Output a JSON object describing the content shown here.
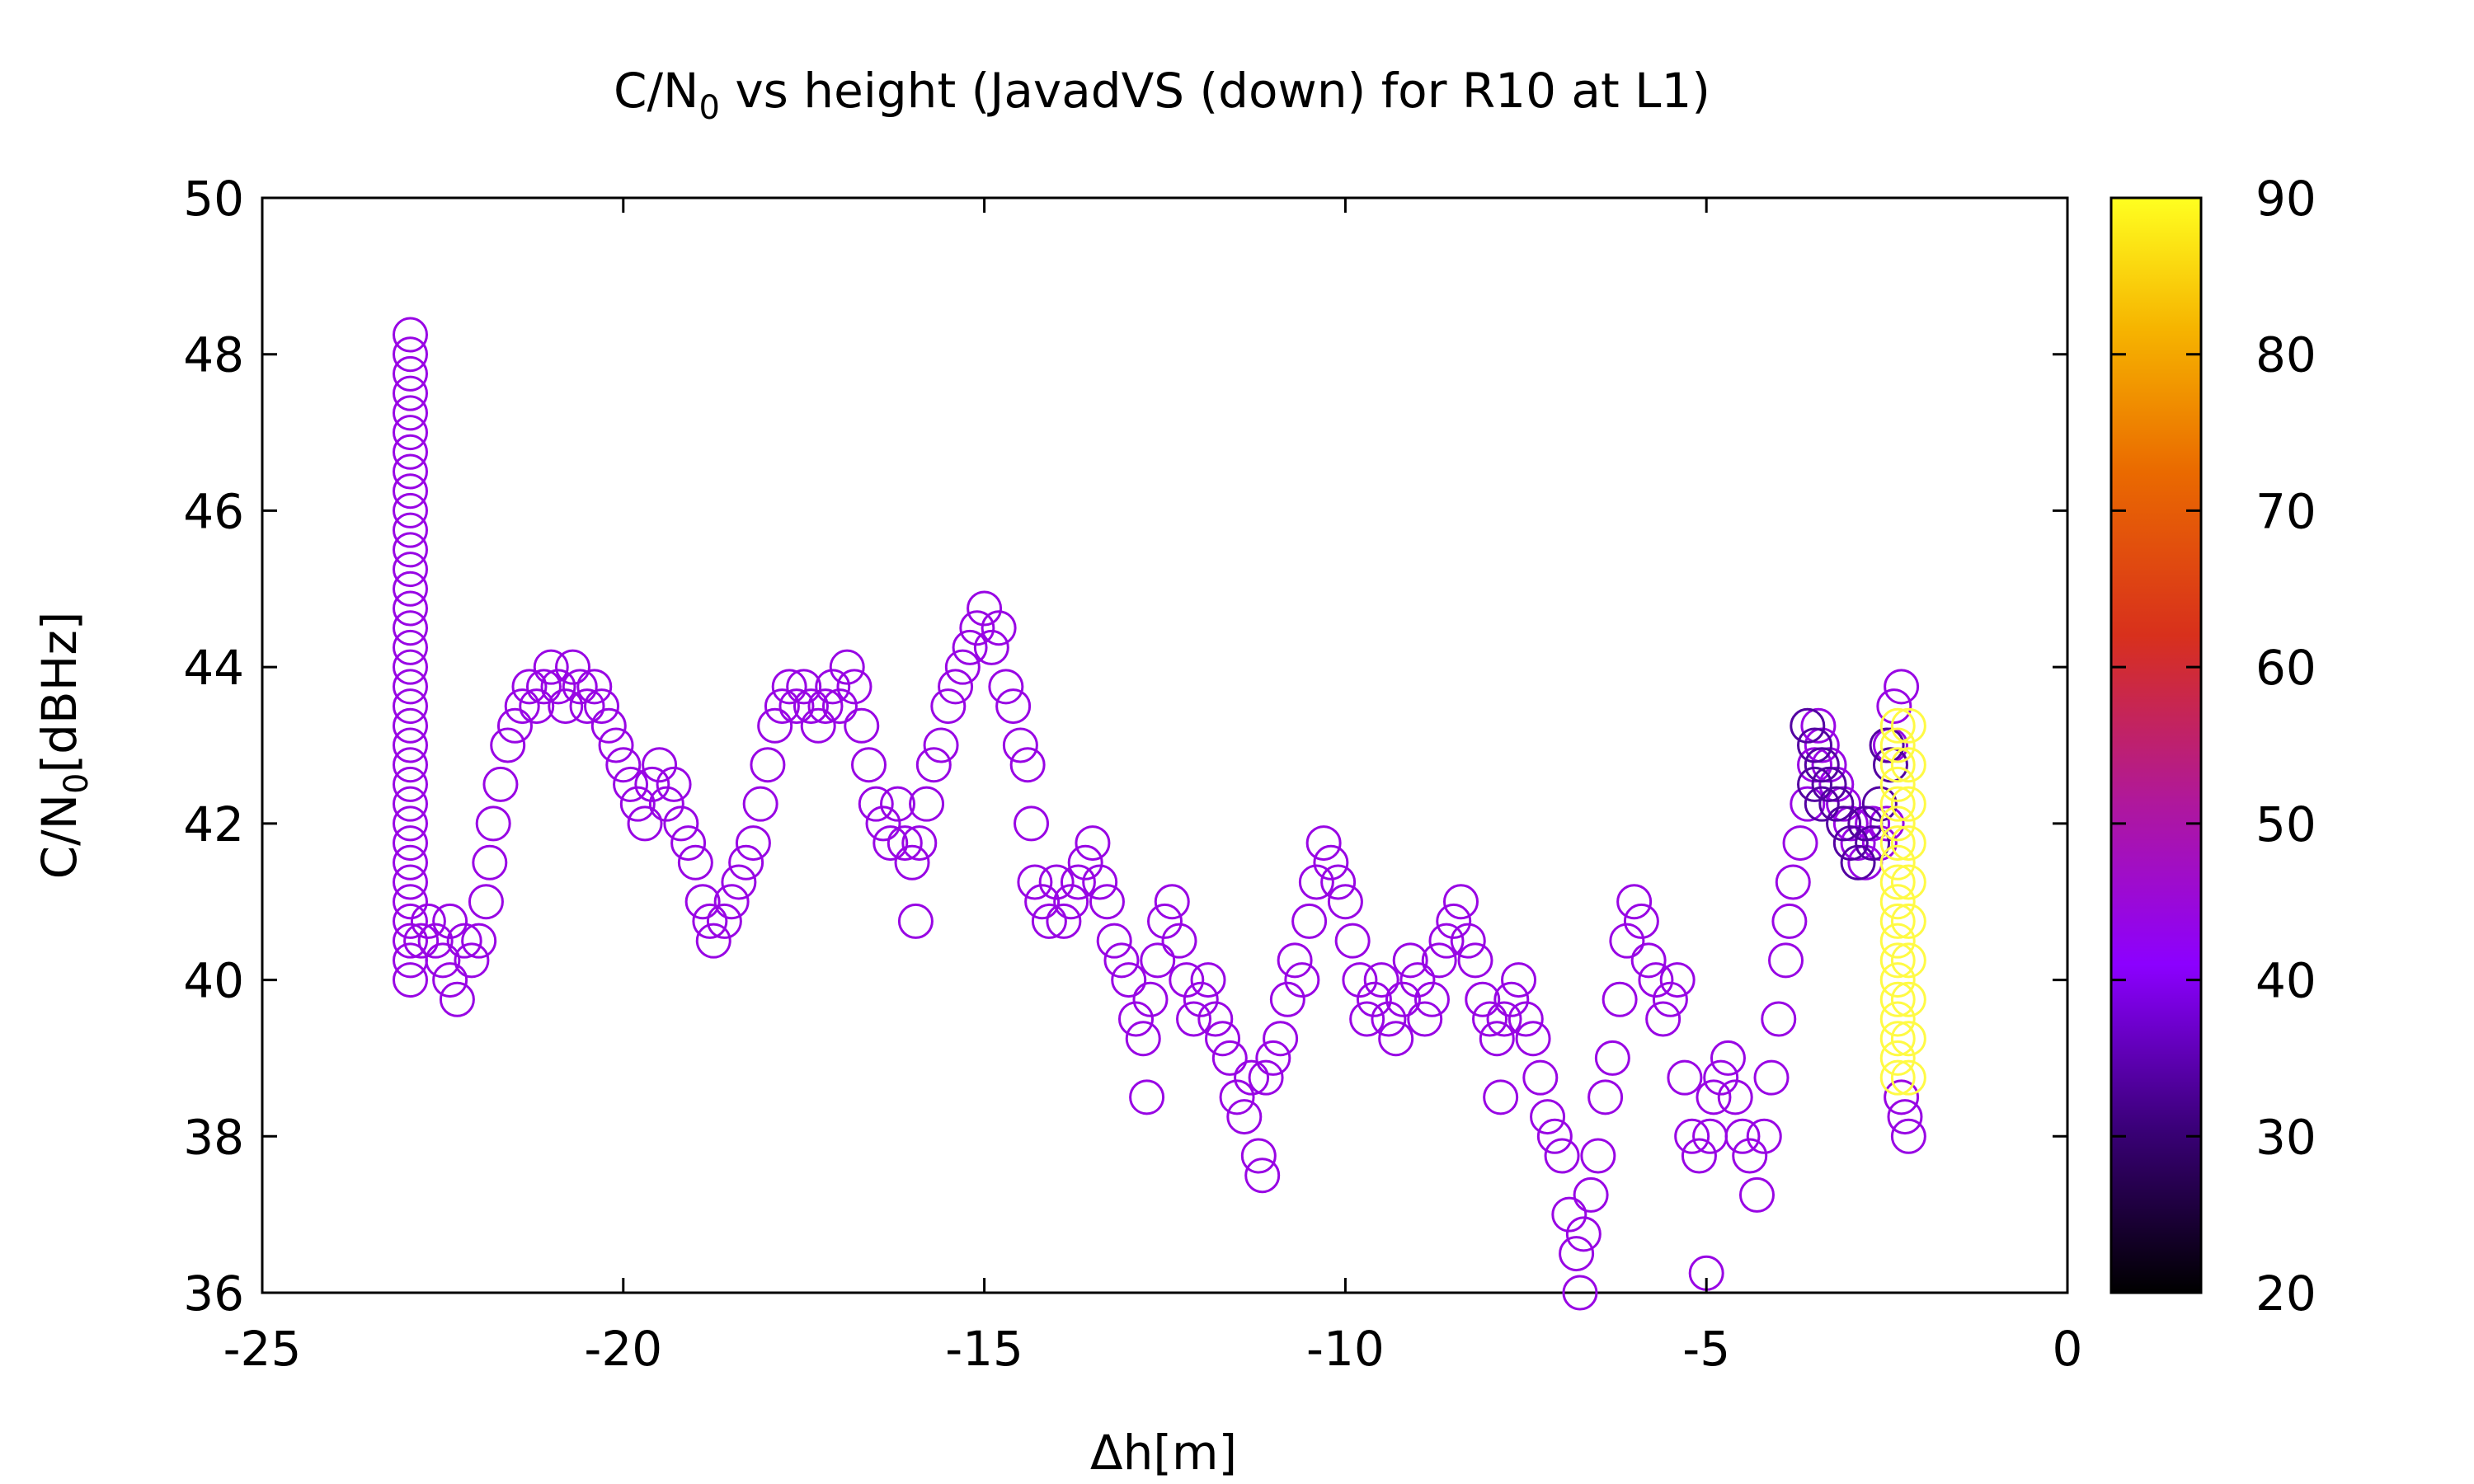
{
  "chart_data": {
    "type": "scatter",
    "title_main": "C/N",
    "title_sub": "0",
    "title_rest": " vs height (JavadVS (down) for R10 at L1)",
    "xlabel": "Δh[m]",
    "ylabel_main": "C/N",
    "ylabel_sub": "0",
    "ylabel_rest": "[dBHz]",
    "xlim": [
      -25,
      0
    ],
    "ylim": [
      36,
      50
    ],
    "xticks": [
      "-25",
      "-20",
      "-15",
      "-10",
      "-5",
      "0"
    ],
    "yticks": [
      "36",
      "38",
      "40",
      "42",
      "44",
      "46",
      "48",
      "50"
    ],
    "colorbar": {
      "range": [
        20,
        90
      ],
      "ticks": [
        "20",
        "30",
        "40",
        "50",
        "60",
        "70",
        "80",
        "90"
      ],
      "palette": [
        "#000000",
        "#3a0078",
        "#8c00ff",
        "#c8197a",
        "#e0401a",
        "#f08c00",
        "#ffe800",
        "#ffff55"
      ]
    },
    "marker": "open-circle",
    "series": [
      {
        "color_value": 42,
        "points": [
          [
            -22.95,
            40.0
          ],
          [
            -22.95,
            40.25
          ],
          [
            -22.95,
            40.5
          ],
          [
            -22.95,
            40.75
          ],
          [
            -22.95,
            41.0
          ],
          [
            -22.95,
            41.25
          ],
          [
            -22.95,
            41.5
          ],
          [
            -22.95,
            41.75
          ],
          [
            -22.95,
            42.0
          ],
          [
            -22.95,
            42.25
          ],
          [
            -22.95,
            42.5
          ],
          [
            -22.95,
            42.75
          ],
          [
            -22.95,
            43.0
          ],
          [
            -22.95,
            43.25
          ],
          [
            -22.95,
            43.5
          ],
          [
            -22.95,
            43.75
          ],
          [
            -22.95,
            44.0
          ],
          [
            -22.95,
            44.25
          ],
          [
            -22.95,
            44.5
          ],
          [
            -22.95,
            44.75
          ],
          [
            -22.95,
            45.0
          ],
          [
            -22.95,
            45.25
          ],
          [
            -22.95,
            45.5
          ],
          [
            -22.95,
            45.75
          ],
          [
            -22.95,
            46.0
          ],
          [
            -22.95,
            46.25
          ],
          [
            -22.95,
            46.5
          ],
          [
            -22.95,
            46.75
          ],
          [
            -22.95,
            47.0
          ],
          [
            -22.95,
            47.25
          ],
          [
            -22.95,
            47.5
          ],
          [
            -22.95,
            47.75
          ],
          [
            -22.95,
            48.0
          ],
          [
            -22.95,
            48.25
          ],
          [
            -22.8,
            40.5
          ],
          [
            -22.7,
            40.75
          ],
          [
            -22.6,
            40.5
          ],
          [
            -22.5,
            40.25
          ],
          [
            -22.4,
            40.0
          ],
          [
            -22.3,
            39.75
          ],
          [
            -22.4,
            40.75
          ],
          [
            -22.2,
            40.5
          ],
          [
            -22.1,
            40.25
          ],
          [
            -22.0,
            40.5
          ],
          [
            -21.9,
            41.0
          ],
          [
            -21.85,
            41.5
          ],
          [
            -21.8,
            42.0
          ],
          [
            -21.7,
            42.5
          ],
          [
            -21.6,
            43.0
          ],
          [
            -21.5,
            43.25
          ],
          [
            -21.4,
            43.5
          ],
          [
            -21.3,
            43.75
          ],
          [
            -21.2,
            43.5
          ],
          [
            -21.1,
            43.75
          ],
          [
            -21.0,
            44.0
          ],
          [
            -20.9,
            43.75
          ],
          [
            -20.8,
            43.5
          ],
          [
            -20.7,
            44.0
          ],
          [
            -20.6,
            43.75
          ],
          [
            -20.5,
            43.5
          ],
          [
            -20.4,
            43.75
          ],
          [
            -20.3,
            43.5
          ],
          [
            -20.2,
            43.25
          ],
          [
            -20.1,
            43.0
          ],
          [
            -20.0,
            42.75
          ],
          [
            -19.9,
            42.5
          ],
          [
            -19.8,
            42.25
          ],
          [
            -19.7,
            42.0
          ],
          [
            -19.6,
            42.5
          ],
          [
            -19.5,
            42.75
          ],
          [
            -19.4,
            42.25
          ],
          [
            -19.3,
            42.5
          ],
          [
            -19.2,
            42.0
          ],
          [
            -19.1,
            41.75
          ],
          [
            -19.0,
            41.5
          ],
          [
            -18.9,
            41.0
          ],
          [
            -18.8,
            40.75
          ],
          [
            -18.75,
            40.5
          ],
          [
            -18.6,
            40.75
          ],
          [
            -18.5,
            41.0
          ],
          [
            -18.4,
            41.25
          ],
          [
            -18.3,
            41.5
          ],
          [
            -18.2,
            41.75
          ],
          [
            -18.1,
            42.25
          ],
          [
            -18.0,
            42.75
          ],
          [
            -17.9,
            43.25
          ],
          [
            -17.8,
            43.5
          ],
          [
            -17.7,
            43.75
          ],
          [
            -17.6,
            43.5
          ],
          [
            -17.5,
            43.75
          ],
          [
            -17.4,
            43.5
          ],
          [
            -17.3,
            43.25
          ],
          [
            -17.2,
            43.5
          ],
          [
            -17.1,
            43.75
          ],
          [
            -17.0,
            43.5
          ],
          [
            -16.9,
            44.0
          ],
          [
            -16.8,
            43.75
          ],
          [
            -16.7,
            43.25
          ],
          [
            -16.6,
            42.75
          ],
          [
            -16.5,
            42.25
          ],
          [
            -16.4,
            42.0
          ],
          [
            -16.3,
            41.75
          ],
          [
            -16.2,
            42.25
          ],
          [
            -16.1,
            41.75
          ],
          [
            -16.0,
            41.5
          ],
          [
            -15.95,
            40.75
          ],
          [
            -15.9,
            41.75
          ],
          [
            -15.8,
            42.25
          ],
          [
            -15.7,
            42.75
          ],
          [
            -15.6,
            43.0
          ],
          [
            -15.5,
            43.5
          ],
          [
            -15.4,
            43.75
          ],
          [
            -15.3,
            44.0
          ],
          [
            -15.2,
            44.25
          ],
          [
            -15.1,
            44.5
          ],
          [
            -15.0,
            44.75
          ],
          [
            -14.9,
            44.25
          ],
          [
            -14.8,
            44.5
          ],
          [
            -14.7,
            43.75
          ],
          [
            -14.6,
            43.5
          ],
          [
            -14.5,
            43.0
          ],
          [
            -14.4,
            42.75
          ],
          [
            -14.35,
            42.0
          ],
          [
            -14.3,
            41.25
          ],
          [
            -14.2,
            41.0
          ],
          [
            -14.1,
            40.75
          ],
          [
            -14.0,
            41.25
          ],
          [
            -13.9,
            40.75
          ],
          [
            -13.8,
            41.0
          ],
          [
            -13.7,
            41.25
          ],
          [
            -13.6,
            41.5
          ],
          [
            -13.5,
            41.75
          ],
          [
            -13.4,
            41.25
          ],
          [
            -13.3,
            41.0
          ],
          [
            -13.2,
            40.5
          ],
          [
            -13.1,
            40.25
          ],
          [
            -13.0,
            40.0
          ],
          [
            -12.9,
            39.5
          ],
          [
            -12.8,
            39.25
          ],
          [
            -12.75,
            38.5
          ],
          [
            -12.7,
            39.75
          ],
          [
            -12.6,
            40.25
          ],
          [
            -12.5,
            40.75
          ],
          [
            -12.4,
            41.0
          ],
          [
            -12.3,
            40.5
          ],
          [
            -12.2,
            40.0
          ],
          [
            -12.1,
            39.5
          ],
          [
            -12.0,
            39.75
          ],
          [
            -11.9,
            40.0
          ],
          [
            -11.8,
            39.5
          ],
          [
            -11.7,
            39.25
          ],
          [
            -11.6,
            39.0
          ],
          [
            -11.5,
            38.5
          ],
          [
            -11.4,
            38.25
          ],
          [
            -11.3,
            38.75
          ],
          [
            -11.2,
            37.75
          ],
          [
            -11.15,
            37.5
          ],
          [
            -11.1,
            38.75
          ],
          [
            -11.0,
            39.0
          ],
          [
            -10.9,
            39.25
          ],
          [
            -10.8,
            39.75
          ],
          [
            -10.7,
            40.25
          ],
          [
            -10.6,
            40.0
          ],
          [
            -10.5,
            40.75
          ],
          [
            -10.4,
            41.25
          ],
          [
            -10.3,
            41.75
          ],
          [
            -10.2,
            41.5
          ],
          [
            -10.1,
            41.25
          ],
          [
            -10.0,
            41.0
          ],
          [
            -9.9,
            40.5
          ],
          [
            -9.8,
            40.0
          ],
          [
            -9.7,
            39.5
          ],
          [
            -9.6,
            39.75
          ],
          [
            -9.5,
            40.0
          ],
          [
            -9.4,
            39.5
          ],
          [
            -9.3,
            39.25
          ],
          [
            -9.2,
            39.75
          ],
          [
            -9.1,
            40.25
          ],
          [
            -9.0,
            40.0
          ],
          [
            -8.9,
            39.5
          ],
          [
            -8.8,
            39.75
          ],
          [
            -8.7,
            40.25
          ],
          [
            -8.6,
            40.5
          ],
          [
            -8.5,
            40.75
          ],
          [
            -8.4,
            41.0
          ],
          [
            -8.3,
            40.5
          ],
          [
            -8.2,
            40.25
          ],
          [
            -8.1,
            39.75
          ],
          [
            -8.0,
            39.5
          ],
          [
            -7.9,
            39.25
          ],
          [
            -7.85,
            38.5
          ],
          [
            -7.8,
            39.5
          ],
          [
            -7.7,
            39.75
          ],
          [
            -7.6,
            40.0
          ],
          [
            -7.5,
            39.5
          ],
          [
            -7.4,
            39.25
          ],
          [
            -7.3,
            38.75
          ],
          [
            -7.2,
            38.25
          ],
          [
            -7.1,
            38.0
          ],
          [
            -7.0,
            37.75
          ],
          [
            -6.9,
            37.0
          ],
          [
            -6.8,
            36.5
          ],
          [
            -6.75,
            36.0
          ],
          [
            -6.7,
            36.75
          ],
          [
            -6.6,
            37.25
          ],
          [
            -6.5,
            37.75
          ],
          [
            -6.4,
            38.5
          ],
          [
            -6.3,
            39.0
          ],
          [
            -6.2,
            39.75
          ],
          [
            -6.1,
            40.5
          ],
          [
            -6.0,
            41.0
          ],
          [
            -5.9,
            40.75
          ],
          [
            -5.8,
            40.25
          ],
          [
            -5.7,
            40.0
          ],
          [
            -5.6,
            39.5
          ],
          [
            -5.5,
            39.75
          ],
          [
            -5.4,
            40.0
          ],
          [
            -5.3,
            38.75
          ],
          [
            -5.2,
            38.0
          ],
          [
            -5.1,
            37.75
          ],
          [
            -5.0,
            36.25
          ],
          [
            -4.95,
            38.0
          ],
          [
            -4.9,
            38.5
          ],
          [
            -4.8,
            38.75
          ],
          [
            -4.7,
            39.0
          ],
          [
            -4.6,
            38.5
          ],
          [
            -4.5,
            38.0
          ],
          [
            -4.4,
            37.75
          ],
          [
            -4.3,
            37.25
          ],
          [
            -4.2,
            38.0
          ],
          [
            -4.1,
            38.75
          ],
          [
            -4.0,
            39.5
          ],
          [
            -3.9,
            40.25
          ],
          [
            -3.85,
            40.75
          ],
          [
            -3.8,
            41.25
          ],
          [
            -3.7,
            41.75
          ],
          [
            -3.6,
            42.25
          ],
          [
            -3.5,
            42.75
          ],
          [
            -3.45,
            43.25
          ],
          [
            -3.4,
            43.0
          ],
          [
            -3.3,
            42.75
          ],
          [
            -3.2,
            42.5
          ],
          [
            -3.1,
            42.25
          ],
          [
            -3.0,
            42.0
          ],
          [
            -2.9,
            41.75
          ],
          [
            -2.8,
            41.5
          ],
          [
            -2.7,
            42.0
          ],
          [
            -2.6,
            41.75
          ],
          [
            -2.5,
            42.0
          ],
          [
            -2.45,
            43.0
          ],
          [
            -2.4,
            43.5
          ],
          [
            -2.3,
            43.75
          ],
          [
            -2.2,
            38.0
          ],
          [
            -2.25,
            38.25
          ],
          [
            -2.3,
            38.5
          ]
        ]
      },
      {
        "color_value": 33,
        "points": [
          [
            -3.6,
            43.25
          ],
          [
            -3.5,
            43.0
          ],
          [
            -3.4,
            42.75
          ],
          [
            -3.3,
            42.5
          ],
          [
            -3.2,
            42.25
          ],
          [
            -3.1,
            42.0
          ],
          [
            -3.0,
            41.75
          ],
          [
            -2.9,
            41.5
          ],
          [
            -2.8,
            42.0
          ],
          [
            -2.7,
            41.75
          ],
          [
            -2.6,
            42.25
          ],
          [
            -3.5,
            42.5
          ],
          [
            -3.4,
            42.25
          ],
          [
            -2.5,
            43.0
          ],
          [
            -2.45,
            42.75
          ]
        ]
      },
      {
        "color_value": 88,
        "points": [
          [
            -2.35,
            38.75
          ],
          [
            -2.35,
            39.0
          ],
          [
            -2.35,
            39.25
          ],
          [
            -2.35,
            39.5
          ],
          [
            -2.35,
            39.75
          ],
          [
            -2.35,
            40.0
          ],
          [
            -2.35,
            40.25
          ],
          [
            -2.35,
            40.5
          ],
          [
            -2.35,
            40.75
          ],
          [
            -2.35,
            41.0
          ],
          [
            -2.35,
            41.25
          ],
          [
            -2.35,
            41.5
          ],
          [
            -2.35,
            41.75
          ],
          [
            -2.35,
            42.0
          ],
          [
            -2.35,
            42.25
          ],
          [
            -2.35,
            42.5
          ],
          [
            -2.35,
            42.75
          ],
          [
            -2.35,
            43.0
          ],
          [
            -2.35,
            43.25
          ],
          [
            -2.2,
            38.75
          ],
          [
            -2.2,
            39.25
          ],
          [
            -2.2,
            39.75
          ],
          [
            -2.2,
            40.25
          ],
          [
            -2.2,
            40.75
          ],
          [
            -2.2,
            41.25
          ],
          [
            -2.2,
            41.75
          ],
          [
            -2.2,
            42.25
          ],
          [
            -2.2,
            42.75
          ],
          [
            -2.2,
            43.25
          ]
        ]
      }
    ]
  }
}
